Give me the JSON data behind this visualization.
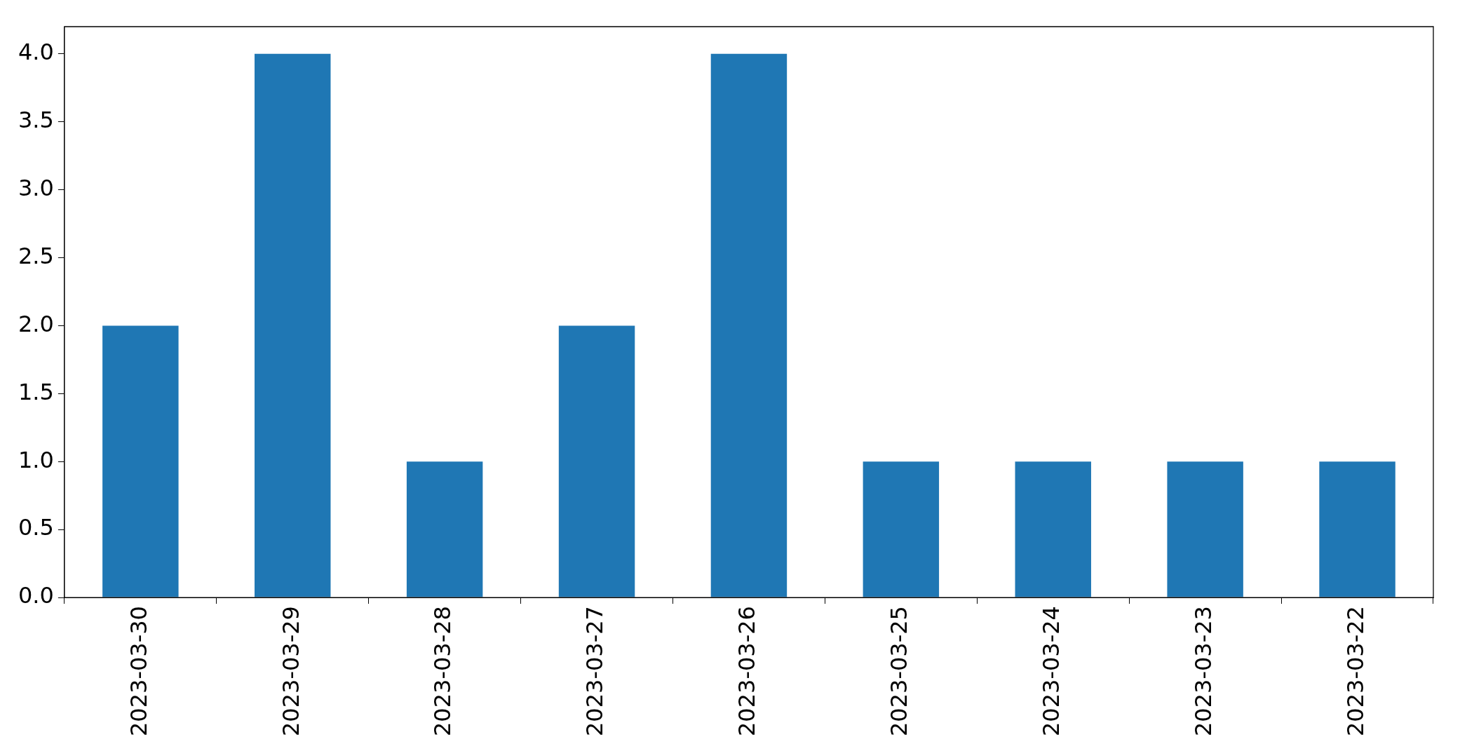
{
  "chart_data": {
    "type": "bar",
    "categories": [
      "2023-03-30",
      "2023-03-29",
      "2023-03-28",
      "2023-03-27",
      "2023-03-26",
      "2023-03-25",
      "2023-03-24",
      "2023-03-23",
      "2023-03-22"
    ],
    "values": [
      2,
      4,
      1,
      2,
      4,
      1,
      1,
      1,
      1
    ],
    "color": "#1f77b4",
    "ylim": [
      0,
      4.2
    ],
    "yticks": [
      {
        "value": 0,
        "label": "0.0"
      },
      {
        "value": 0.5,
        "label": "0.5"
      },
      {
        "value": 1,
        "label": "1.0"
      },
      {
        "value": 1.5,
        "label": "1.5"
      },
      {
        "value": 2,
        "label": "2.0"
      },
      {
        "value": 2.5,
        "label": "2.5"
      },
      {
        "value": 3,
        "label": "3.0"
      },
      {
        "value": 3.5,
        "label": "3.5"
      },
      {
        "value": 4,
        "label": "4.0"
      }
    ],
    "grid": false,
    "legend": false
  }
}
